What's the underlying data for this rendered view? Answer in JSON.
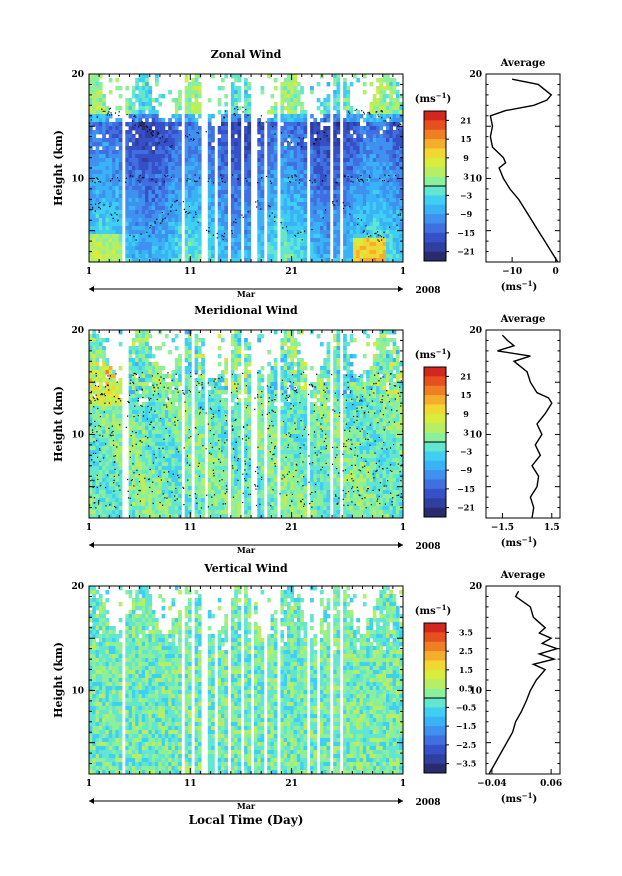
{
  "figure": {
    "xlabel": "Local Time (Day)",
    "month_label": "Mar",
    "year_label": "2008",
    "colorbar_unit_base": "(ms",
    "colorbar_unit_exp": "−1",
    "colorbar_unit_close": ")",
    "profile_title": "Average",
    "profile_unit_base": "(ms",
    "profile_unit_exp": "−1",
    "profile_unit_close": ")"
  },
  "chart_data": [
    {
      "type": "heatmap",
      "title": "Zonal Wind",
      "ylabel": "Height (km)",
      "xlim": [
        1,
        32
      ],
      "ylim": [
        2,
        20
      ],
      "x_tick_labels": [
        "1",
        "11",
        "21",
        "1"
      ],
      "y_tick_labels": [
        "10",
        "20"
      ],
      "colorbar_ticks": [
        "21",
        "15",
        "9",
        "3",
        "−3",
        "−9",
        "−15",
        "−21"
      ],
      "colorbar_range": [
        -24,
        24
      ],
      "colors": [
        "#2a2a6e",
        "#2f3f9e",
        "#3550c8",
        "#3f6fe0",
        "#3f91f0",
        "#39b2f6",
        "#3fcff2",
        "#63e6d0",
        "#8cef9a",
        "#b6ef64",
        "#d8ec3e",
        "#f2d733",
        "#f5ad2c",
        "#f07f24",
        "#e6501e",
        "#d4261c"
      ],
      "profile": {
        "title": "Average",
        "xlim": [
          -16,
          1
        ],
        "x_tick_labels": [
          "−10",
          "0"
        ],
        "heights": [
          2,
          3,
          4,
          5,
          6,
          7,
          8,
          9,
          10,
          11,
          11.5,
          12,
          13,
          14,
          15,
          16,
          16.5,
          17,
          17.5,
          18,
          19,
          19.5
        ],
        "values": [
          0.5,
          -1,
          -2.5,
          -4,
          -5.5,
          -7,
          -8.5,
          -10.5,
          -12,
          -13,
          -11.5,
          -12,
          -14.5,
          -15,
          -14.5,
          -15,
          -11.5,
          -5,
          -2,
          -1,
          -4,
          -10
        ]
      }
    },
    {
      "type": "heatmap",
      "title": "Meridional Wind",
      "ylabel": "Height (km)",
      "xlim": [
        1,
        32
      ],
      "ylim": [
        2,
        20
      ],
      "x_tick_labels": [
        "1",
        "11",
        "21",
        "1"
      ],
      "y_tick_labels": [
        "10",
        "20"
      ],
      "colorbar_ticks": [
        "21",
        "15",
        "9",
        "3",
        "−3",
        "−9",
        "−15",
        "−21"
      ],
      "colorbar_range": [
        -24,
        24
      ],
      "colors": [
        "#2a2a6e",
        "#2f3f9e",
        "#3550c8",
        "#3f6fe0",
        "#3f91f0",
        "#39b2f6",
        "#3fcff2",
        "#63e6d0",
        "#8cef9a",
        "#b6ef64",
        "#d8ec3e",
        "#f2d733",
        "#f5ad2c",
        "#f07f24",
        "#e6501e",
        "#d4261c"
      ],
      "profile": {
        "title": "Average",
        "xlim": [
          -2.5,
          2.0
        ],
        "x_tick_labels": [
          "−1.5",
          "1.5"
        ],
        "heights": [
          2,
          3,
          4,
          5,
          6,
          7,
          8,
          9,
          10,
          11,
          12,
          13,
          13.5,
          14,
          15,
          16,
          17,
          17.5,
          18,
          18.5,
          19,
          19.5
        ],
        "values": [
          0.3,
          0.4,
          0.2,
          0.6,
          0.7,
          0.3,
          0.8,
          0.5,
          0.9,
          0.6,
          1.1,
          1.5,
          1.3,
          0.6,
          0.2,
          0.0,
          -0.8,
          0.2,
          -1.8,
          -0.8,
          -1.2,
          -1.5
        ]
      }
    },
    {
      "type": "heatmap",
      "title": "Vertical Wind",
      "ylabel": "Height (km)",
      "xlim": [
        1,
        32
      ],
      "ylim": [
        2,
        20
      ],
      "x_tick_labels": [
        "1",
        "11",
        "21",
        "1"
      ],
      "y_tick_labels": [
        "10",
        "20"
      ],
      "colorbar_ticks": [
        "3.5",
        "2.5",
        "1.5",
        "0.5",
        "−0.5",
        "−1.5",
        "−2.5",
        "−3.5"
      ],
      "colorbar_range": [
        -4,
        4
      ],
      "colors": [
        "#2a2a6e",
        "#2f3f9e",
        "#3550c8",
        "#3f6fe0",
        "#3f91f0",
        "#39b2f6",
        "#3fcff2",
        "#63e6d0",
        "#8cef9a",
        "#b6ef64",
        "#d8ec3e",
        "#f2d733",
        "#f5ad2c",
        "#f07f24",
        "#e6501e",
        "#d4261c"
      ],
      "profile": {
        "title": "Average",
        "xlim": [
          -0.05,
          0.075
        ],
        "x_tick_labels": [
          "−0.04",
          "0.06"
        ],
        "heights": [
          2,
          3,
          4,
          5,
          6,
          7,
          8,
          9,
          10,
          11,
          12,
          12.5,
          13,
          13.5,
          14,
          14.5,
          15,
          15.5,
          16,
          17,
          18,
          19,
          19.5
        ],
        "values": [
          -0.045,
          -0.035,
          -0.025,
          -0.015,
          -0.005,
          0.0,
          0.01,
          0.018,
          0.025,
          0.035,
          0.05,
          0.03,
          0.065,
          0.04,
          0.07,
          0.045,
          0.06,
          0.04,
          0.05,
          0.03,
          0.025,
          0.0,
          0.005
        ]
      }
    }
  ]
}
